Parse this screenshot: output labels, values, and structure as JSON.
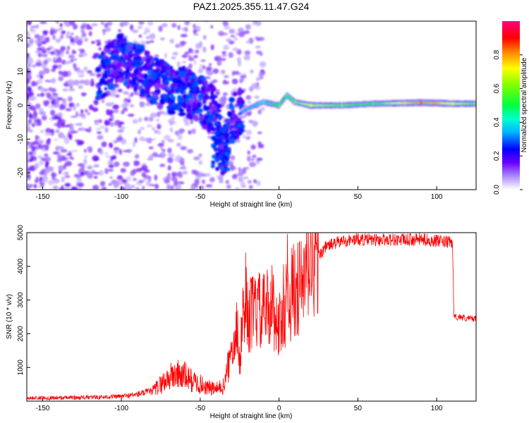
{
  "figure_title": "PAZ1.2025.355.11.47.G24",
  "chart_data": [
    {
      "type": "heatmap",
      "xlabel": "Height of straight line (km)",
      "ylabel": "Frequency (Hz)",
      "xlim": [
        -160,
        125
      ],
      "ylim": [
        -25,
        25
      ],
      "x_ticks": [
        -150,
        -100,
        -50,
        0,
        50,
        100
      ],
      "y_ticks": [
        -20,
        -10,
        0,
        10,
        20
      ],
      "colorbar": {
        "label": "Normalized spectral amplitude",
        "range": [
          0,
          1
        ],
        "ticks": [
          0.0,
          0.2,
          0.4,
          0.6,
          0.8
        ],
        "colormap": [
          "#ffffff",
          "#6a00ff",
          "#0000ff",
          "#00e0ff",
          "#00ff40",
          "#ffff00",
          "#ff0000",
          "#ff0080"
        ]
      },
      "ridge": [
        {
          "x": -110,
          "y": 10,
          "a": 0.25
        },
        {
          "x": -100,
          "y": 14,
          "a": 0.25
        },
        {
          "x": -90,
          "y": 11,
          "a": 0.25
        },
        {
          "x": -80,
          "y": 8,
          "a": 0.28
        },
        {
          "x": -70,
          "y": 5,
          "a": 0.3
        },
        {
          "x": -60,
          "y": 4,
          "a": 0.3
        },
        {
          "x": -50,
          "y": 2,
          "a": 0.3
        },
        {
          "x": -40,
          "y": -2,
          "a": 0.28
        },
        {
          "x": -35,
          "y": -17,
          "a": 0.25
        },
        {
          "x": -30,
          "y": -4,
          "a": 0.25
        },
        {
          "x": -20,
          "y": -1,
          "a": 0.35
        },
        {
          "x": -10,
          "y": 1,
          "a": 0.4
        },
        {
          "x": 0,
          "y": 0,
          "a": 0.55
        },
        {
          "x": 5,
          "y": 3,
          "a": 0.45
        },
        {
          "x": 10,
          "y": 1,
          "a": 0.6
        },
        {
          "x": 20,
          "y": 0,
          "a": 0.7
        },
        {
          "x": 40,
          "y": 0,
          "a": 0.6
        },
        {
          "x": 60,
          "y": 0.5,
          "a": 0.55
        },
        {
          "x": 80,
          "y": 0.7,
          "a": 0.75
        },
        {
          "x": 90,
          "y": 0.8,
          "a": 0.85
        },
        {
          "x": 100,
          "y": 0.7,
          "a": 0.8
        },
        {
          "x": 110,
          "y": 0.5,
          "a": 0.7
        },
        {
          "x": 125,
          "y": 0.5,
          "a": 0.6
        }
      ]
    },
    {
      "type": "line",
      "xlabel": "Height of straight line (km)",
      "ylabel": "SNR (10 * v/v)",
      "xlim": [
        -160,
        125
      ],
      "ylim": [
        0,
        5000
      ],
      "x_ticks": [
        -150,
        -100,
        -50,
        0,
        50,
        100
      ],
      "y_ticks": [
        1000,
        2000,
        3000,
        4000,
        5000
      ],
      "color": "#ff0000",
      "x": [
        -160,
        -140,
        -120,
        -100,
        -90,
        -80,
        -75,
        -70,
        -65,
        -60,
        -55,
        -50,
        -45,
        -40,
        -35,
        -30,
        -27,
        -25,
        -22,
        -20,
        -15,
        -10,
        -5,
        0,
        5,
        10,
        15,
        20,
        25,
        30,
        40,
        50,
        60,
        70,
        80,
        90,
        100,
        110,
        111,
        115,
        120,
        125
      ],
      "y": [
        90,
        100,
        110,
        140,
        200,
        300,
        500,
        700,
        800,
        750,
        600,
        500,
        400,
        350,
        450,
        1500,
        2500,
        1200,
        2800,
        2500,
        2700,
        2600,
        2900,
        2200,
        3000,
        3300,
        3400,
        4000,
        4300,
        4600,
        4750,
        4800,
        4780,
        4800,
        4780,
        4800,
        4750,
        4700,
        2500,
        2500,
        2450,
        2450
      ]
    }
  ]
}
